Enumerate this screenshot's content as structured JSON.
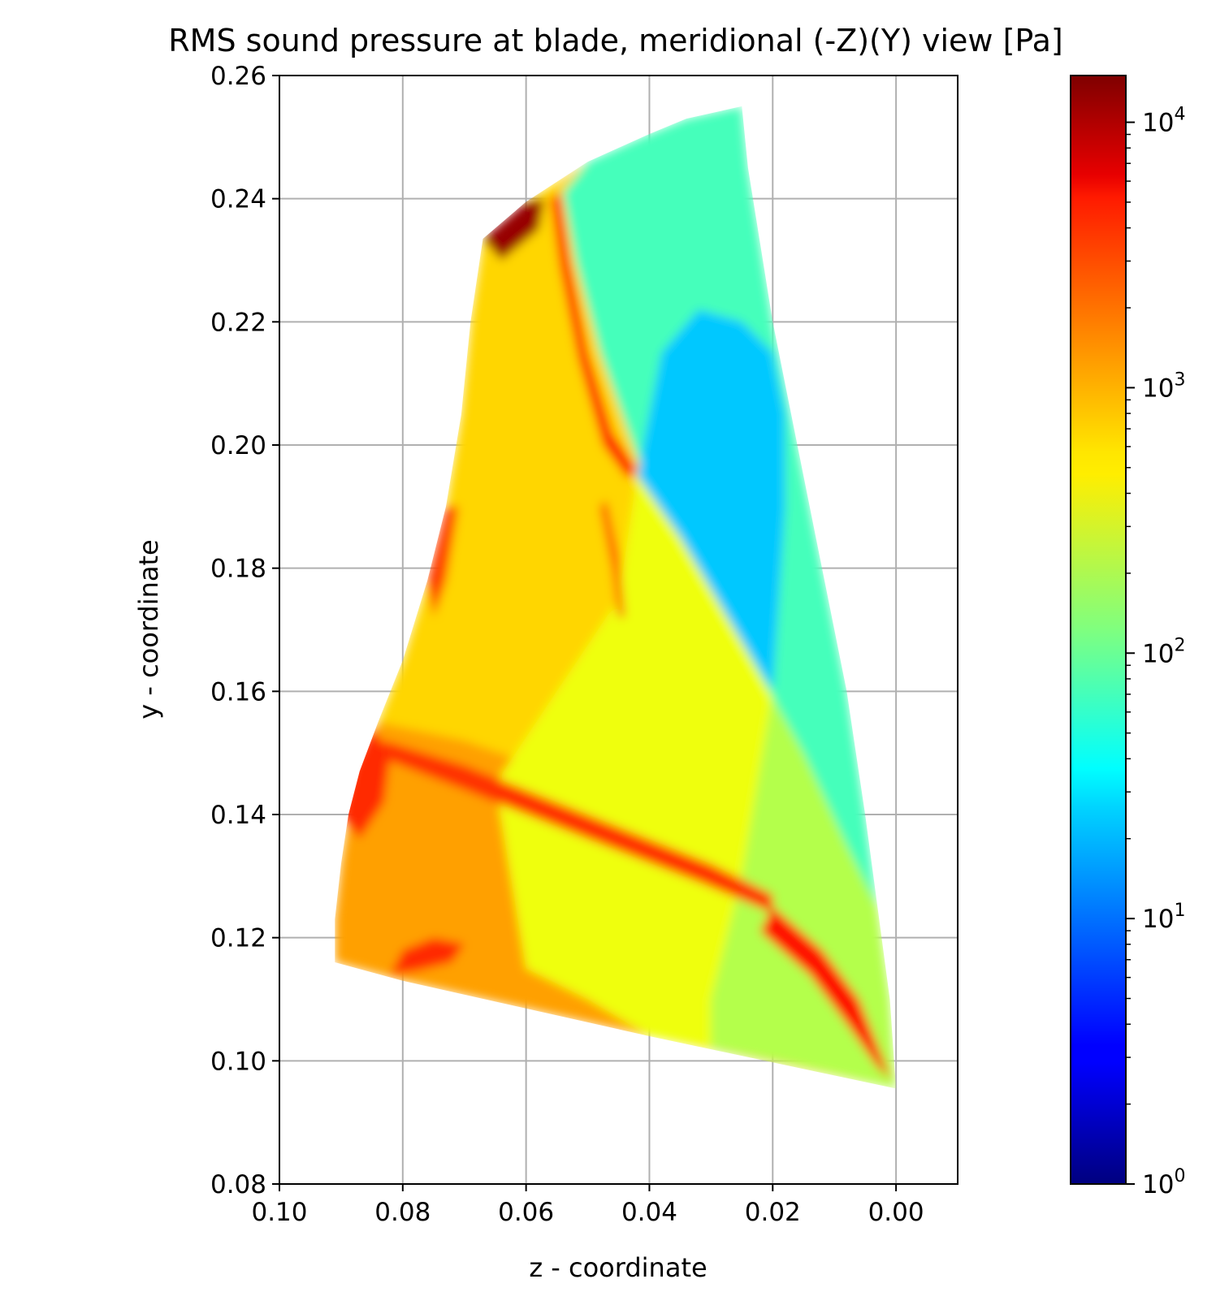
{
  "chart_data": {
    "type": "heatmap",
    "title": "RMS sound pressure at blade, meridional (-Z)(Y) view [Pa]",
    "xlabel": "z - coordinate",
    "ylabel": "y - coordinate",
    "xlim": [
      0.1,
      -0.01
    ],
    "ylim": [
      0.08,
      0.26
    ],
    "x_inverted": true,
    "grid": true,
    "x_ticks": [
      0.1,
      0.08,
      0.06,
      0.04,
      0.02,
      0.0
    ],
    "x_tick_labels": [
      "0.10",
      "0.08",
      "0.06",
      "0.04",
      "0.02",
      "0.00"
    ],
    "y_ticks": [
      0.08,
      0.1,
      0.12,
      0.14,
      0.16,
      0.18,
      0.2,
      0.22,
      0.24,
      0.26
    ],
    "y_tick_labels": [
      "0.08",
      "0.10",
      "0.12",
      "0.14",
      "0.16",
      "0.18",
      "0.20",
      "0.22",
      "0.24",
      "0.26"
    ],
    "colormap": "jet",
    "colorbar": {
      "scale": "log",
      "range": [
        1,
        15000
      ],
      "ticks": [
        1,
        10,
        100,
        1000,
        10000
      ],
      "tick_labels": [
        {
          "base": "10",
          "exp": "0"
        },
        {
          "base": "10",
          "exp": "1"
        },
        {
          "base": "10",
          "exp": "2"
        },
        {
          "base": "10",
          "exp": "3"
        },
        {
          "base": "10",
          "exp": "4"
        }
      ]
    },
    "blade_outline": [
      [
        0.091,
        0.116
      ],
      [
        0.091,
        0.123
      ],
      [
        0.09,
        0.132
      ],
      [
        0.0888,
        0.14
      ],
      [
        0.087,
        0.147
      ],
      [
        0.084,
        0.155
      ],
      [
        0.08,
        0.165
      ],
      [
        0.076,
        0.178
      ],
      [
        0.073,
        0.19
      ],
      [
        0.0705,
        0.205
      ],
      [
        0.069,
        0.22
      ],
      [
        0.067,
        0.2335
      ],
      [
        0.06,
        0.2395
      ],
      [
        0.05,
        0.246
      ],
      [
        0.04,
        0.2505
      ],
      [
        0.034,
        0.253
      ],
      [
        0.025,
        0.255
      ],
      [
        0.024,
        0.245
      ],
      [
        0.02,
        0.22
      ],
      [
        0.016,
        0.2
      ],
      [
        0.012,
        0.18
      ],
      [
        0.008,
        0.16
      ],
      [
        0.005,
        0.14
      ],
      [
        0.003,
        0.125
      ],
      [
        0.001,
        0.11
      ],
      [
        0.0,
        0.0955
      ],
      [
        0.04,
        0.104
      ],
      [
        0.08,
        0.113
      ],
      [
        0.091,
        0.116
      ]
    ],
    "regions": [
      {
        "level": 600,
        "polygon": [
          [
            0.091,
            0.116
          ],
          [
            0.091,
            0.123
          ],
          [
            0.09,
            0.132
          ],
          [
            0.0888,
            0.14
          ],
          [
            0.087,
            0.147
          ],
          [
            0.084,
            0.155
          ],
          [
            0.08,
            0.165
          ],
          [
            0.076,
            0.178
          ],
          [
            0.073,
            0.19
          ],
          [
            0.0705,
            0.205
          ],
          [
            0.069,
            0.22
          ],
          [
            0.067,
            0.2335
          ],
          [
            0.06,
            0.2395
          ],
          [
            0.05,
            0.246
          ],
          [
            0.04,
            0.2505
          ],
          [
            0.034,
            0.253
          ],
          [
            0.025,
            0.255
          ],
          [
            0.024,
            0.245
          ],
          [
            0.02,
            0.22
          ],
          [
            0.016,
            0.2
          ],
          [
            0.012,
            0.18
          ],
          [
            0.008,
            0.16
          ],
          [
            0.005,
            0.14
          ],
          [
            0.003,
            0.125
          ],
          [
            0.001,
            0.11
          ],
          [
            0.0,
            0.0955
          ],
          [
            0.04,
            0.104
          ],
          [
            0.08,
            0.113
          ]
        ]
      },
      {
        "level": 1000,
        "polygon": [
          [
            0.091,
            0.116
          ],
          [
            0.091,
            0.123
          ],
          [
            0.09,
            0.132
          ],
          [
            0.0888,
            0.14
          ],
          [
            0.087,
            0.147
          ],
          [
            0.084,
            0.155
          ],
          [
            0.07,
            0.152
          ],
          [
            0.05,
            0.145
          ],
          [
            0.03,
            0.138
          ],
          [
            0.015,
            0.13
          ],
          [
            0.005,
            0.115
          ],
          [
            0.0,
            0.0955
          ],
          [
            0.04,
            0.104
          ],
          [
            0.08,
            0.113
          ]
        ]
      },
      {
        "level": 350,
        "polygon": [
          [
            0.042,
            0.195
          ],
          [
            0.03,
            0.18
          ],
          [
            0.02,
            0.165
          ],
          [
            0.01,
            0.15
          ],
          [
            0.006,
            0.14
          ],
          [
            0.003,
            0.125
          ],
          [
            0.001,
            0.11
          ],
          [
            0.0,
            0.0955
          ],
          [
            0.02,
            0.1
          ],
          [
            0.04,
            0.104
          ],
          [
            0.05,
            0.11
          ],
          [
            0.06,
            0.115
          ],
          [
            0.065,
            0.145
          ],
          [
            0.055,
            0.16
          ],
          [
            0.045,
            0.175
          ]
        ]
      },
      {
        "level": 200,
        "polygon": [
          [
            0.02,
            0.16
          ],
          [
            0.012,
            0.15
          ],
          [
            0.006,
            0.135
          ],
          [
            0.003,
            0.125
          ],
          [
            0.001,
            0.11
          ],
          [
            0.0,
            0.0955
          ],
          [
            0.015,
            0.099
          ],
          [
            0.03,
            0.102
          ],
          [
            0.03,
            0.11
          ],
          [
            0.025,
            0.13
          ]
        ]
      },
      {
        "level": 70,
        "polygon": [
          [
            0.054,
            0.241
          ],
          [
            0.05,
            0.246
          ],
          [
            0.04,
            0.2505
          ],
          [
            0.034,
            0.253
          ],
          [
            0.025,
            0.255
          ],
          [
            0.024,
            0.245
          ],
          [
            0.02,
            0.22
          ],
          [
            0.016,
            0.2
          ],
          [
            0.012,
            0.18
          ],
          [
            0.008,
            0.16
          ],
          [
            0.005,
            0.14
          ],
          [
            0.003,
            0.125
          ],
          [
            0.008,
            0.135
          ],
          [
            0.015,
            0.15
          ],
          [
            0.025,
            0.168
          ],
          [
            0.035,
            0.185
          ],
          [
            0.042,
            0.198
          ],
          [
            0.048,
            0.215
          ],
          [
            0.052,
            0.23
          ]
        ]
      },
      {
        "level": 22,
        "polygon": [
          [
            0.042,
            0.195
          ],
          [
            0.035,
            0.185
          ],
          [
            0.025,
            0.168
          ],
          [
            0.02,
            0.16
          ],
          [
            0.019,
            0.175
          ],
          [
            0.018,
            0.19
          ],
          [
            0.018,
            0.205
          ],
          [
            0.02,
            0.215
          ],
          [
            0.025,
            0.22
          ],
          [
            0.032,
            0.222
          ],
          [
            0.038,
            0.215
          ]
        ]
      },
      {
        "level": 4000,
        "polygon": [
          [
            0.0545,
            0.241
          ],
          [
            0.053,
            0.23
          ],
          [
            0.05,
            0.215
          ],
          [
            0.046,
            0.202
          ],
          [
            0.042,
            0.196
          ],
          [
            0.0435,
            0.1945
          ],
          [
            0.0475,
            0.2
          ],
          [
            0.0515,
            0.214
          ],
          [
            0.0545,
            0.229
          ],
          [
            0.056,
            0.24
          ]
        ]
      },
      {
        "level": 12000,
        "polygon": [
          [
            0.067,
            0.2335
          ],
          [
            0.06,
            0.2395
          ],
          [
            0.057,
            0.24
          ],
          [
            0.058,
            0.235
          ],
          [
            0.064,
            0.23
          ]
        ]
      },
      {
        "level": 3000,
        "polygon": [
          [
            0.09,
            0.14
          ],
          [
            0.088,
            0.148
          ],
          [
            0.085,
            0.154
          ],
          [
            0.082,
            0.15
          ],
          [
            0.083,
            0.142
          ],
          [
            0.087,
            0.136
          ]
        ]
      },
      {
        "level": 3000,
        "polygon": [
          [
            0.082,
            0.114
          ],
          [
            0.08,
            0.118
          ],
          [
            0.075,
            0.12
          ],
          [
            0.07,
            0.119
          ],
          [
            0.072,
            0.116
          ],
          [
            0.078,
            0.1145
          ]
        ]
      },
      {
        "level": 2800,
        "polygon": [
          [
            0.083,
            0.152
          ],
          [
            0.07,
            0.148
          ],
          [
            0.05,
            0.14
          ],
          [
            0.03,
            0.132
          ],
          [
            0.02,
            0.127
          ],
          [
            0.02,
            0.124
          ],
          [
            0.032,
            0.129
          ],
          [
            0.05,
            0.136
          ],
          [
            0.07,
            0.144
          ],
          [
            0.083,
            0.149
          ]
        ]
      },
      {
        "level": 4000,
        "polygon": [
          [
            0.02,
            0.125
          ],
          [
            0.012,
            0.118
          ],
          [
            0.006,
            0.11
          ],
          [
            0.002,
            0.1
          ],
          [
            0.0008,
            0.097
          ],
          [
            0.003,
            0.099
          ],
          [
            0.008,
            0.106
          ],
          [
            0.014,
            0.114
          ],
          [
            0.022,
            0.121
          ]
        ]
      },
      {
        "level": 2500,
        "polygon": [
          [
            0.076,
            0.178
          ],
          [
            0.073,
            0.19
          ],
          [
            0.071,
            0.19
          ],
          [
            0.073,
            0.178
          ],
          [
            0.075,
            0.172
          ]
        ]
      },
      {
        "level": 2200,
        "polygon": [
          [
            0.048,
            0.19
          ],
          [
            0.046,
            0.18
          ],
          [
            0.045,
            0.172
          ],
          [
            0.044,
            0.172
          ],
          [
            0.045,
            0.182
          ],
          [
            0.047,
            0.191
          ]
        ]
      }
    ]
  }
}
